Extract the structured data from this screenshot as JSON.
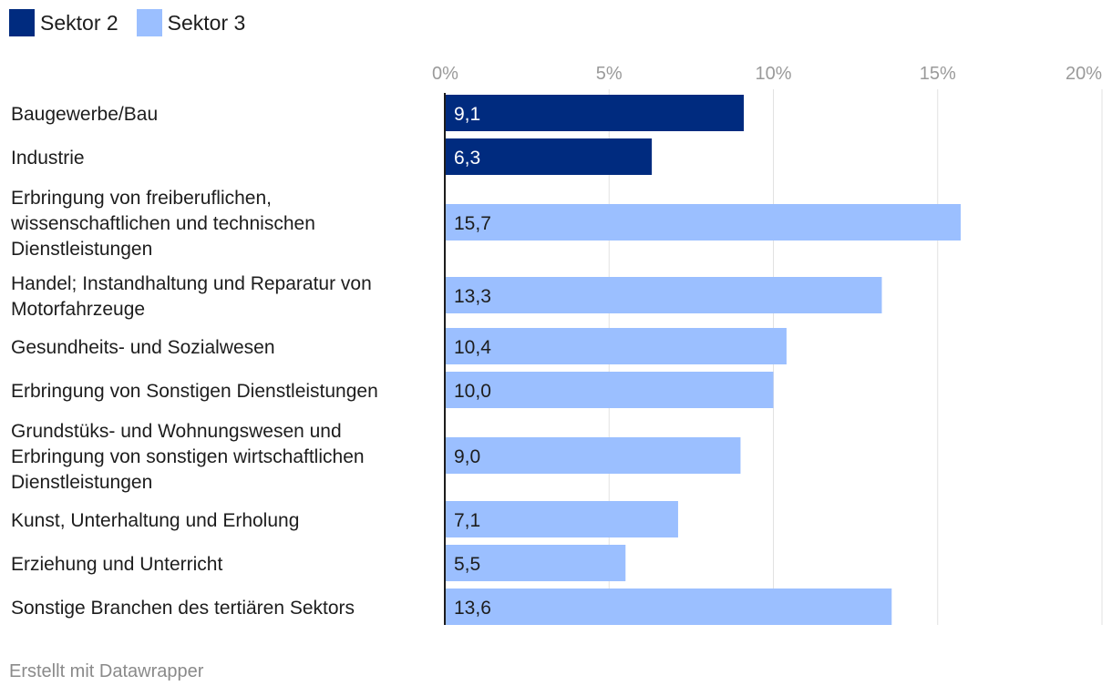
{
  "chart_data": {
    "type": "bar",
    "orientation": "horizontal",
    "series": [
      {
        "name": "Sektor 2",
        "color": "#002b7f"
      },
      {
        "name": "Sektor 3",
        "color": "#9bbfff"
      }
    ],
    "categories": [
      {
        "label_lines": [
          "Baugewerbe/Bau"
        ],
        "value": 9.1,
        "value_label": "9,1",
        "series": 0
      },
      {
        "label_lines": [
          "Industrie"
        ],
        "value": 6.3,
        "value_label": "6,3",
        "series": 0
      },
      {
        "label_lines": [
          "Erbringung von freiberuflichen,",
          "wissenschaftlichen und technischen",
          "Dienstleistungen"
        ],
        "value": 15.7,
        "value_label": "15,7",
        "series": 1
      },
      {
        "label_lines": [
          "Handel; Instandhaltung und Reparatur von",
          "Motorfahrzeuge"
        ],
        "value": 13.3,
        "value_label": "13,3",
        "series": 1
      },
      {
        "label_lines": [
          "Gesundheits- und Sozialwesen"
        ],
        "value": 10.4,
        "value_label": "10,4",
        "series": 1
      },
      {
        "label_lines": [
          "Erbringung von Sonstigen Dienstleistungen"
        ],
        "value": 10.0,
        "value_label": "10,0",
        "series": 1
      },
      {
        "label_lines": [
          "Grundstüks- und Wohnungswesen und",
          "Erbringung von sonstigen wirtschaftlichen",
          "Dienstleistungen"
        ],
        "value": 9.0,
        "value_label": "9,0",
        "series": 1
      },
      {
        "label_lines": [
          "Kunst, Unterhaltung und Erholung"
        ],
        "value": 7.1,
        "value_label": "7,1",
        "series": 1
      },
      {
        "label_lines": [
          "Erziehung und Unterricht"
        ],
        "value": 5.5,
        "value_label": "5,5",
        "series": 1
      },
      {
        "label_lines": [
          "Sonstige Branchen des tertiären Sektors"
        ],
        "value": 13.6,
        "value_label": "13,6",
        "series": 1
      }
    ],
    "xlim": [
      0,
      20
    ],
    "xticks": [
      0,
      5,
      10,
      15,
      20
    ],
    "xtick_labels": [
      "0%",
      "5%",
      "10%",
      "15%",
      "20%"
    ],
    "grid": true,
    "legend": "top-left"
  },
  "legend": {
    "items": [
      {
        "label": "Sektor 2",
        "color": "#002b7f"
      },
      {
        "label": "Sektor 3",
        "color": "#9bbfff"
      }
    ]
  },
  "footer": {
    "credit": "Erstellt mit Datawrapper"
  }
}
